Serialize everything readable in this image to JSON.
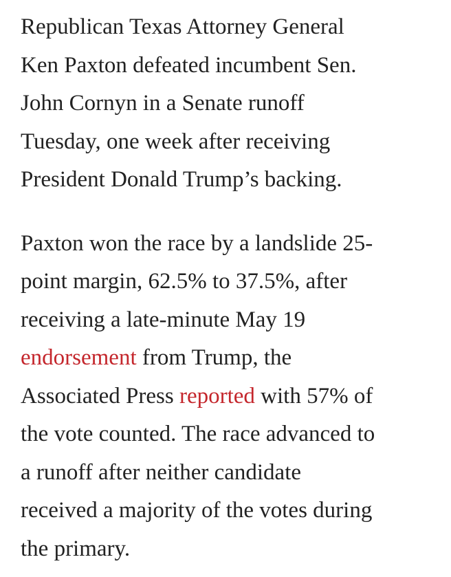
{
  "paragraphs": [
    {
      "lines": [
        [
          {
            "text": "Republican Texas Attorney General"
          }
        ],
        [
          {
            "text": "Ken Paxton defeated incumbent Sen."
          }
        ],
        [
          {
            "text": "John Cornyn in a Senate runoff"
          }
        ],
        [
          {
            "text": "Tuesday, one week after receiving"
          }
        ],
        [
          {
            "text": "President Donald Trump’s backing."
          }
        ]
      ]
    },
    {
      "lines": [
        [
          {
            "text": "Paxton won the race by a landslide 25-"
          }
        ],
        [
          {
            "text": "point margin, 62.5% to 37.5%, after"
          }
        ],
        [
          {
            "text": "receiving a late-minute May 19"
          }
        ],
        [
          {
            "text": "endorsement",
            "link": true
          },
          {
            "text": " from Trump, the"
          }
        ],
        [
          {
            "text": "Associated Press "
          },
          {
            "text": "reported",
            "link": true
          },
          {
            "text": " with 57% of"
          }
        ],
        [
          {
            "text": "the vote counted. The race advanced to"
          }
        ],
        [
          {
            "text": "a runoff after neither candidate"
          }
        ],
        [
          {
            "text": "received a majority of the votes during"
          }
        ],
        [
          {
            "text": "the primary."
          }
        ]
      ]
    }
  ]
}
